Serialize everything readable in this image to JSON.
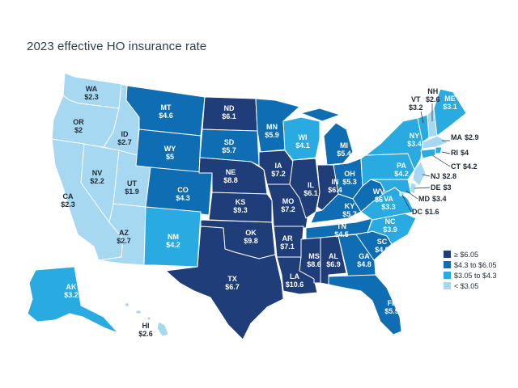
{
  "title": "2023 effective HO insurance rate",
  "colors": {
    "c4": "#1f3d78",
    "c3": "#0f6db3",
    "c2": "#29abe2",
    "c1": "#a6d8f2",
    "border": "#ffffff"
  },
  "states": {
    "WA": {
      "abbr": "WA",
      "rate": "$2.3",
      "tier": 1
    },
    "OR": {
      "abbr": "OR",
      "rate": "$2",
      "tier": 1
    },
    "CA": {
      "abbr": "CA",
      "rate": "$2.3",
      "tier": 1
    },
    "ID": {
      "abbr": "ID",
      "rate": "$2.7",
      "tier": 1
    },
    "NV": {
      "abbr": "NV",
      "rate": "$2.2",
      "tier": 1
    },
    "UT": {
      "abbr": "UT",
      "rate": "$1.9",
      "tier": 1
    },
    "AZ": {
      "abbr": "AZ",
      "rate": "$2.7",
      "tier": 1
    },
    "MT": {
      "abbr": "MT",
      "rate": "$4.6",
      "tier": 3
    },
    "WY": {
      "abbr": "WY",
      "rate": "$5",
      "tier": 3
    },
    "CO": {
      "abbr": "CO",
      "rate": "$4.3",
      "tier": 3
    },
    "NM": {
      "abbr": "NM",
      "rate": "$4.2",
      "tier": 2
    },
    "ND": {
      "abbr": "ND",
      "rate": "$6.1",
      "tier": 4
    },
    "SD": {
      "abbr": "SD",
      "rate": "$5.7",
      "tier": 3
    },
    "NE": {
      "abbr": "NE",
      "rate": "$8.8",
      "tier": 4
    },
    "KS": {
      "abbr": "KS",
      "rate": "$9.3",
      "tier": 4
    },
    "OK": {
      "abbr": "OK",
      "rate": "$9.8",
      "tier": 4
    },
    "TX": {
      "abbr": "TX",
      "rate": "$6.7",
      "tier": 4
    },
    "MN": {
      "abbr": "MN",
      "rate": "$5.9",
      "tier": 3
    },
    "IA": {
      "abbr": "IA",
      "rate": "$7.2",
      "tier": 4
    },
    "MO": {
      "abbr": "MO",
      "rate": "$7.2",
      "tier": 4
    },
    "AR": {
      "abbr": "AR",
      "rate": "$7.1",
      "tier": 4
    },
    "LA": {
      "abbr": "LA",
      "rate": "$10.6",
      "tier": 4
    },
    "WI": {
      "abbr": "WI",
      "rate": "$4.1",
      "tier": 2
    },
    "IL": {
      "abbr": "IL",
      "rate": "$6.1",
      "tier": 4
    },
    "MI": {
      "abbr": "MI",
      "rate": "$5.4",
      "tier": 3
    },
    "IN": {
      "abbr": "IN",
      "rate": "$6.4",
      "tier": 4
    },
    "OH": {
      "abbr": "OH",
      "rate": "$5.3",
      "tier": 3
    },
    "KY": {
      "abbr": "KY",
      "rate": "$5.7",
      "tier": 3
    },
    "TN": {
      "abbr": "TN",
      "rate": "$4.5",
      "tier": 3
    },
    "MS": {
      "abbr": "MS",
      "rate": "$8.6",
      "tier": 4
    },
    "AL": {
      "abbr": "AL",
      "rate": "$6.9",
      "tier": 4
    },
    "GA": {
      "abbr": "GA",
      "rate": "$4.8",
      "tier": 3
    },
    "FL": {
      "abbr": "FL",
      "rate": "$5.9",
      "tier": 3
    },
    "SC": {
      "abbr": "SC",
      "rate": "$4.9",
      "tier": 3
    },
    "NC": {
      "abbr": "NC",
      "rate": "$3.9",
      "tier": 2
    },
    "VA": {
      "abbr": "VA",
      "rate": "$3.3",
      "tier": 2
    },
    "WV": {
      "abbr": "WV",
      "rate": "$6",
      "tier": 3
    },
    "PA": {
      "abbr": "PA",
      "rate": "$4.2",
      "tier": 2
    },
    "NY": {
      "abbr": "NY",
      "rate": "$3.4",
      "tier": 2
    },
    "VT": {
      "abbr": "VT",
      "rate": "$3.2",
      "tier": 2
    },
    "NH": {
      "abbr": "NH",
      "rate": "$2.6",
      "tier": 1
    },
    "ME": {
      "abbr": "ME",
      "rate": "$3.1",
      "tier": 2
    },
    "MA": {
      "abbr": "MA",
      "rate": "$2.9",
      "tier": 1
    },
    "RI": {
      "abbr": "RI",
      "rate": "$4",
      "tier": 2
    },
    "CT": {
      "abbr": "CT",
      "rate": "$4.2",
      "tier": 2
    },
    "NJ": {
      "abbr": "NJ",
      "rate": "$2.8",
      "tier": 1
    },
    "DE": {
      "abbr": "DE",
      "rate": "$3",
      "tier": 1
    },
    "MD": {
      "abbr": "MD",
      "rate": "$3.4",
      "tier": 2
    },
    "DC": {
      "abbr": "DC",
      "rate": "$1.6",
      "tier": 1
    },
    "AK": {
      "abbr": "AK",
      "rate": "$3.2",
      "tier": 2
    },
    "HI": {
      "abbr": "HI",
      "rate": "$2.6",
      "tier": 1
    }
  },
  "legend": [
    {
      "label": "≥ $6.05",
      "tier": 4
    },
    {
      "label": "$4.3 to $6.05",
      "tier": 3
    },
    {
      "label": "$3.05 to $4.3",
      "tier": 2
    },
    {
      "label": "< $3.05",
      "tier": 1
    }
  ]
}
